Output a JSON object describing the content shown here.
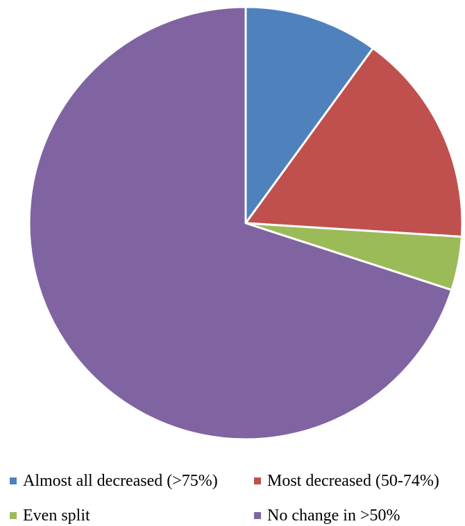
{
  "chart_data": {
    "type": "pie",
    "title": "",
    "legend_position": "bottom",
    "slices": [
      {
        "label": "Almost all decreased (>75%)",
        "value": 10,
        "color": "#4F81BD"
      },
      {
        "label": "Most decreased (50-74%)",
        "value": 16,
        "color": "#C0504D"
      },
      {
        "label": "Even split",
        "value": 4,
        "color": "#9BBB59"
      },
      {
        "label": "No change in >50%",
        "value": 70,
        "color": "#8064A2"
      }
    ]
  }
}
